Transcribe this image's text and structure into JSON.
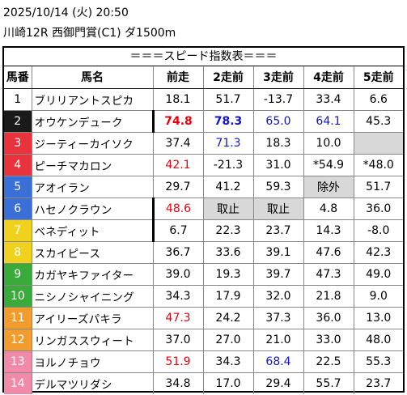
{
  "header": {
    "date": "2025/10/14 (火) 20:50",
    "race": "川崎12R 西御門賞(C1) ダ1500m"
  },
  "banner": "＝＝＝スピード指数表＝＝＝",
  "columns": [
    "馬番",
    "馬名",
    "前走",
    "2走前",
    "3走前",
    "4走前",
    "5走前"
  ],
  "rows": [
    {
      "num": "1",
      "name": "ブリリアントスピカ",
      "v": [
        {
          "t": "18.1"
        },
        {
          "t": "51.7"
        },
        {
          "t": "-13.7"
        },
        {
          "t": "33.4"
        },
        {
          "t": "6.6"
        }
      ]
    },
    {
      "num": "2",
      "name": "オウケンデューク",
      "v": [
        {
          "t": "74.8",
          "c": "red",
          "b": true
        },
        {
          "t": "78.3",
          "c": "blue",
          "b": true
        },
        {
          "t": "65.0",
          "c": "blue"
        },
        {
          "t": "64.1",
          "c": "blue"
        },
        {
          "t": "45.3"
        }
      ]
    },
    {
      "num": "3",
      "name": "ジーティーカイソク",
      "v": [
        {
          "t": "37.4"
        },
        {
          "t": "71.3",
          "c": "blue"
        },
        {
          "t": "18.3"
        },
        {
          "t": "10.0"
        },
        {
          "t": "",
          "g": true
        }
      ]
    },
    {
      "num": "4",
      "name": "ピーチマカロン",
      "v": [
        {
          "t": "42.1",
          "c": "red"
        },
        {
          "t": "-21.3"
        },
        {
          "t": "31.0"
        },
        {
          "t": "*54.9"
        },
        {
          "t": "*48.0"
        }
      ]
    },
    {
      "num": "5",
      "name": "アオイラン",
      "v": [
        {
          "t": "29.7"
        },
        {
          "t": "41.2"
        },
        {
          "t": "59.3"
        },
        {
          "t": "除外",
          "g": true
        },
        {
          "t": "51.7"
        }
      ]
    },
    {
      "num": "6",
      "name": "ハセノクラウン",
      "v": [
        {
          "t": "48.6",
          "c": "red"
        },
        {
          "t": "取止",
          "g": true
        },
        {
          "t": "取止",
          "g": true
        },
        {
          "t": "4.8"
        },
        {
          "t": "36.0"
        }
      ]
    },
    {
      "num": "7",
      "name": "ベネディット",
      "v": [
        {
          "t": "6.7"
        },
        {
          "t": "22.3"
        },
        {
          "t": "23.7"
        },
        {
          "t": "14.3"
        },
        {
          "t": "-8.0"
        }
      ]
    },
    {
      "num": "8",
      "name": "スカイピース",
      "v": [
        {
          "t": "36.7"
        },
        {
          "t": "33.6"
        },
        {
          "t": "39.1"
        },
        {
          "t": "47.6"
        },
        {
          "t": "42.3"
        }
      ]
    },
    {
      "num": "9",
      "name": "カガヤキファイター",
      "v": [
        {
          "t": "39.0"
        },
        {
          "t": "19.3"
        },
        {
          "t": "39.7"
        },
        {
          "t": "47.3"
        },
        {
          "t": "49.0"
        }
      ]
    },
    {
      "num": "10",
      "name": "ニシノシャイニング",
      "v": [
        {
          "t": "34.3"
        },
        {
          "t": "17.9"
        },
        {
          "t": "32.0"
        },
        {
          "t": "21.8"
        },
        {
          "t": "9.0"
        }
      ]
    },
    {
      "num": "11",
      "name": "アイリーズパキラ",
      "v": [
        {
          "t": "47.3",
          "c": "red"
        },
        {
          "t": "24.2"
        },
        {
          "t": "37.3"
        },
        {
          "t": "36.0"
        },
        {
          "t": "13.0"
        }
      ]
    },
    {
      "num": "12",
      "name": "リンガススウィート",
      "v": [
        {
          "t": "37.0"
        },
        {
          "t": "27.0"
        },
        {
          "t": "21.0"
        },
        {
          "t": "33.0"
        },
        {
          "t": "48.0"
        }
      ]
    },
    {
      "num": "13",
      "name": "ヨルノチョウ",
      "v": [
        {
          "t": "51.9",
          "c": "red"
        },
        {
          "t": "34.3"
        },
        {
          "t": "68.4",
          "c": "blue"
        },
        {
          "t": "22.5"
        },
        {
          "t": "55.3"
        }
      ]
    },
    {
      "num": "14",
      "name": "デルマツリダシ",
      "v": [
        {
          "t": "34.8"
        },
        {
          "t": "17.0"
        },
        {
          "t": "29.4"
        },
        {
          "t": "55.7"
        },
        {
          "t": "23.7"
        }
      ]
    }
  ],
  "thick_divider_rows": [
    "2",
    "6",
    "7"
  ],
  "colors": {
    "red_value": "#e8000d",
    "blue_value": "#1515c8",
    "grey_cell": "#d8d8d8"
  }
}
